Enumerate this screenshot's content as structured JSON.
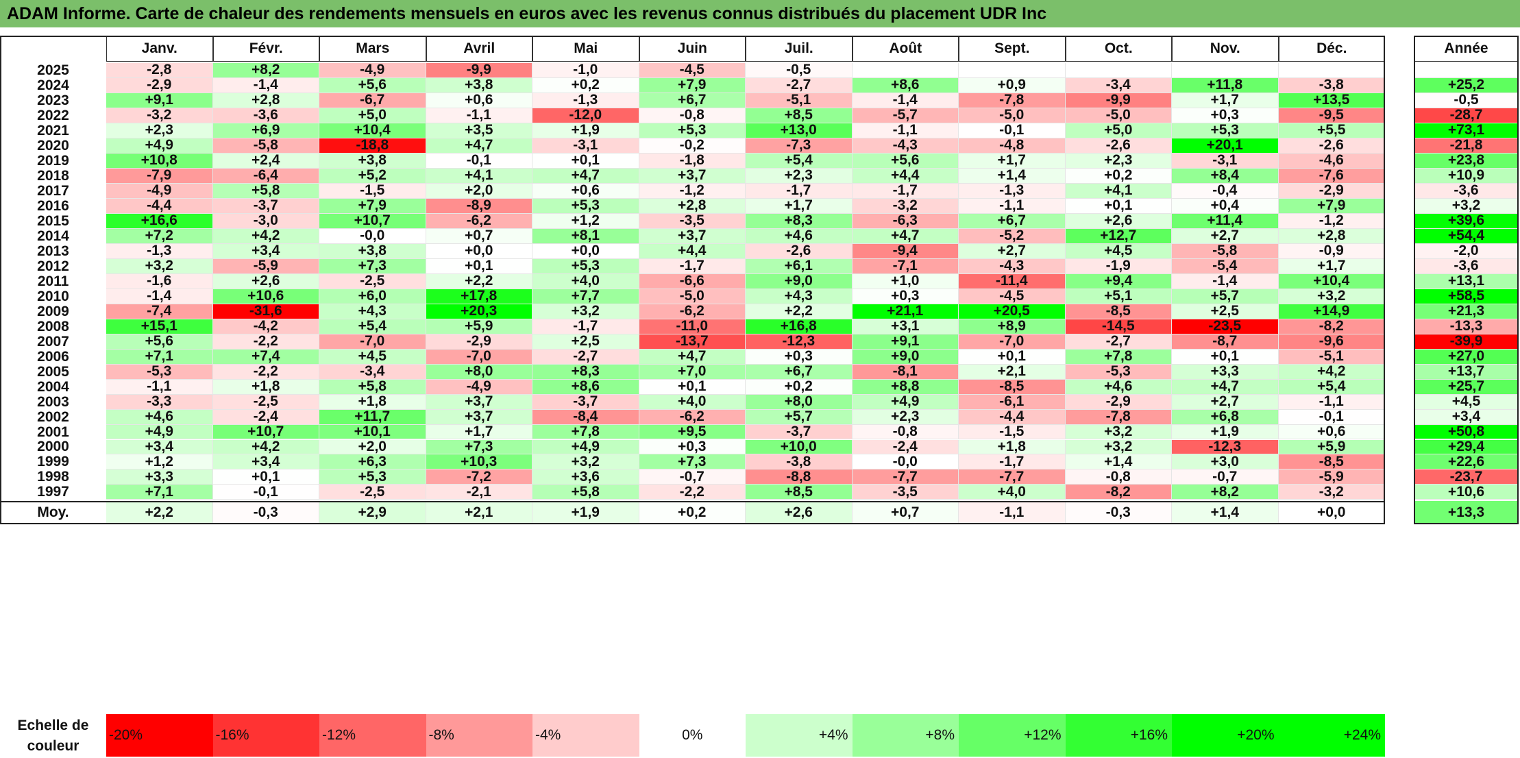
{
  "title": "ADAM Informe. Carte de chaleur des rendements mensuels en euros avec les revenus connus distribués du placement UDR Inc",
  "chart_data": {
    "type": "heatmap",
    "title": "ADAM Informe. Carte de chaleur des rendements mensuels en euros avec les revenus connus distribués du placement UDR Inc",
    "columns": [
      "Janv.",
      "Févr.",
      "Mars",
      "Avril",
      "Mai",
      "Juin",
      "Juil.",
      "Août",
      "Sept.",
      "Oct.",
      "Nov.",
      "Déc."
    ],
    "year_column_label": "Année",
    "rows": [
      {
        "year": "2025",
        "values": [
          "-2,8",
          "+8,2",
          "-4,9",
          "-9,9",
          "-1,0",
          "-4,5",
          "-0,5",
          "",
          "",
          "",
          "",
          ""
        ],
        "annual": ""
      },
      {
        "year": "2024",
        "values": [
          "-2,9",
          "-1,4",
          "+5,6",
          "+3,8",
          "+0,2",
          "+7,9",
          "-2,7",
          "+8,6",
          "+0,9",
          "-3,4",
          "+11,8",
          "-3,8"
        ],
        "annual": "+25,2"
      },
      {
        "year": "2023",
        "values": [
          "+9,1",
          "+2,8",
          "-6,7",
          "+0,6",
          "-1,3",
          "+6,7",
          "-5,1",
          "-1,4",
          "-7,8",
          "-9,9",
          "+1,7",
          "+13,5"
        ],
        "annual": "-0,5"
      },
      {
        "year": "2022",
        "values": [
          "-3,2",
          "-3,6",
          "+5,0",
          "-1,1",
          "-12,0",
          "-0,8",
          "+8,5",
          "-5,7",
          "-5,0",
          "-5,0",
          "+0,3",
          "-9,5"
        ],
        "annual": "-28,7"
      },
      {
        "year": "2021",
        "values": [
          "+2,3",
          "+6,9",
          "+10,4",
          "+3,5",
          "+1,9",
          "+5,3",
          "+13,0",
          "-1,1",
          "-0,1",
          "+5,0",
          "+5,3",
          "+5,5"
        ],
        "annual": "+73,1"
      },
      {
        "year": "2020",
        "values": [
          "+4,9",
          "-5,8",
          "-18,8",
          "+4,7",
          "-3,1",
          "-0,2",
          "-7,3",
          "-4,3",
          "-4,8",
          "-2,6",
          "+20,1",
          "-2,6"
        ],
        "annual": "-21,8"
      },
      {
        "year": "2019",
        "values": [
          "+10,8",
          "+2,4",
          "+3,8",
          "-0,1",
          "+0,1",
          "-1,8",
          "+5,4",
          "+5,6",
          "+1,7",
          "+2,3",
          "-3,1",
          "-4,6"
        ],
        "annual": "+23,8"
      },
      {
        "year": "2018",
        "values": [
          "-7,9",
          "-6,4",
          "+5,2",
          "+4,1",
          "+4,7",
          "+3,7",
          "+2,3",
          "+4,4",
          "+1,4",
          "+0,2",
          "+8,4",
          "-7,6"
        ],
        "annual": "+10,9"
      },
      {
        "year": "2017",
        "values": [
          "-4,9",
          "+5,8",
          "-1,5",
          "+2,0",
          "+0,6",
          "-1,2",
          "-1,7",
          "-1,7",
          "-1,3",
          "+4,1",
          "-0,4",
          "-2,9"
        ],
        "annual": "-3,6"
      },
      {
        "year": "2016",
        "values": [
          "-4,4",
          "-3,7",
          "+7,9",
          "-8,9",
          "+5,3",
          "+2,8",
          "+1,7",
          "-3,2",
          "-1,1",
          "+0,1",
          "+0,4",
          "+7,9"
        ],
        "annual": "+3,2"
      },
      {
        "year": "2015",
        "values": [
          "+16,6",
          "-3,0",
          "+10,7",
          "-6,2",
          "+1,2",
          "-3,5",
          "+8,3",
          "-6,3",
          "+6,7",
          "+2,6",
          "+11,4",
          "-1,2"
        ],
        "annual": "+39,6"
      },
      {
        "year": "2014",
        "values": [
          "+7,2",
          "+4,2",
          "-0,0",
          "+0,7",
          "+8,1",
          "+3,7",
          "+4,6",
          "+4,7",
          "-5,2",
          "+12,7",
          "+2,7",
          "+2,8"
        ],
        "annual": "+54,4"
      },
      {
        "year": "2013",
        "values": [
          "-1,3",
          "+3,4",
          "+3,8",
          "+0,0",
          "+0,0",
          "+4,4",
          "-2,6",
          "-9,4",
          "+2,7",
          "+4,5",
          "-5,8",
          "-0,9"
        ],
        "annual": "-2,0"
      },
      {
        "year": "2012",
        "values": [
          "+3,2",
          "-5,9",
          "+7,3",
          "+0,1",
          "+5,3",
          "-1,7",
          "+6,1",
          "-7,1",
          "-4,3",
          "-1,9",
          "-5,4",
          "+1,7"
        ],
        "annual": "-3,6"
      },
      {
        "year": "2011",
        "values": [
          "-1,6",
          "+2,6",
          "-2,5",
          "+2,2",
          "+4,0",
          "-6,6",
          "+9,0",
          "+1,0",
          "-11,4",
          "+9,4",
          "-1,4",
          "+10,4"
        ],
        "annual": "+13,1"
      },
      {
        "year": "2010",
        "values": [
          "-1,4",
          "+10,6",
          "+6,0",
          "+17,8",
          "+7,7",
          "-5,0",
          "+4,3",
          "+0,3",
          "-4,5",
          "+5,1",
          "+5,7",
          "+3,2"
        ],
        "annual": "+58,5"
      },
      {
        "year": "2009",
        "values": [
          "-7,4",
          "-31,6",
          "+4,3",
          "+20,3",
          "+3,2",
          "-6,2",
          "+2,2",
          "+21,1",
          "+20,5",
          "-8,5",
          "+2,5",
          "+14,9"
        ],
        "annual": "+21,3"
      },
      {
        "year": "2008",
        "values": [
          "+15,1",
          "-4,2",
          "+5,4",
          "+5,9",
          "-1,7",
          "-11,0",
          "+16,8",
          "+3,1",
          "+8,9",
          "-14,5",
          "-23,5",
          "-8,2"
        ],
        "annual": "-13,3"
      },
      {
        "year": "2007",
        "values": [
          "+5,6",
          "-2,2",
          "-7,0",
          "-2,9",
          "+2,5",
          "-13,7",
          "-12,3",
          "+9,1",
          "-7,0",
          "-2,7",
          "-8,7",
          "-9,6"
        ],
        "annual": "-39,9"
      },
      {
        "year": "2006",
        "values": [
          "+7,1",
          "+7,4",
          "+4,5",
          "-7,0",
          "-2,7",
          "+4,7",
          "+0,3",
          "+9,0",
          "+0,1",
          "+7,8",
          "+0,1",
          "-5,1"
        ],
        "annual": "+27,0"
      },
      {
        "year": "2005",
        "values": [
          "-5,3",
          "-2,2",
          "-3,4",
          "+8,0",
          "+8,3",
          "+7,0",
          "+6,7",
          "-8,1",
          "+2,1",
          "-5,3",
          "+3,3",
          "+4,2"
        ],
        "annual": "+13,7"
      },
      {
        "year": "2004",
        "values": [
          "-1,1",
          "+1,8",
          "+5,8",
          "-4,9",
          "+8,6",
          "+0,1",
          "+0,2",
          "+8,8",
          "-8,5",
          "+4,6",
          "+4,7",
          "+5,4"
        ],
        "annual": "+25,7"
      },
      {
        "year": "2003",
        "values": [
          "-3,3",
          "-2,5",
          "+1,8",
          "+3,7",
          "-3,7",
          "+4,0",
          "+8,0",
          "+4,9",
          "-6,1",
          "-2,9",
          "+2,7",
          "-1,1"
        ],
        "annual": "+4,5"
      },
      {
        "year": "2002",
        "values": [
          "+4,6",
          "-2,4",
          "+11,7",
          "+3,7",
          "-8,4",
          "-6,2",
          "+5,7",
          "+2,3",
          "-4,4",
          "-7,8",
          "+6,8",
          "-0,1"
        ],
        "annual": "+3,4"
      },
      {
        "year": "2001",
        "values": [
          "+4,9",
          "+10,7",
          "+10,1",
          "+1,7",
          "+7,8",
          "+9,5",
          "-3,7",
          "-0,8",
          "-1,5",
          "+3,2",
          "+1,9",
          "+0,6"
        ],
        "annual": "+50,8"
      },
      {
        "year": "2000",
        "values": [
          "+3,4",
          "+4,2",
          "+2,0",
          "+7,3",
          "+4,9",
          "+0,3",
          "+10,0",
          "-2,4",
          "+1,8",
          "+3,2",
          "-12,3",
          "+5,9"
        ],
        "annual": "+29,4"
      },
      {
        "year": "1999",
        "values": [
          "+1,2",
          "+3,4",
          "+6,3",
          "+10,3",
          "+3,2",
          "+7,3",
          "-3,8",
          "-0,0",
          "-1,7",
          "+1,4",
          "+3,0",
          "-8,5"
        ],
        "annual": "+22,6"
      },
      {
        "year": "1998",
        "values": [
          "+3,3",
          "+0,1",
          "+5,3",
          "-7,2",
          "+3,6",
          "-0,7",
          "-8,8",
          "-7,7",
          "-7,7",
          "-0,8",
          "-0,7",
          "-5,9"
        ],
        "annual": "-23,7"
      },
      {
        "year": "1997",
        "values": [
          "+7,1",
          "-0,1",
          "-2,5",
          "-2,1",
          "+5,8",
          "-2,2",
          "+8,5",
          "-3,5",
          "+4,0",
          "-8,2",
          "+8,2",
          "-3,2"
        ],
        "annual": "+10,6"
      }
    ],
    "average": {
      "label": "Moy.",
      "values": [
        "+2,2",
        "-0,3",
        "+2,9",
        "+2,1",
        "+1,9",
        "+0,2",
        "+2,6",
        "+0,7",
        "-1,1",
        "-0,3",
        "+1,4",
        "+0,0"
      ],
      "annual": "+13,3"
    },
    "color_scale": {
      "label_line1": "Echelle de",
      "label_line2": "couleur",
      "stops": [
        {
          "label": "-20%",
          "value": -20
        },
        {
          "label": "-16%",
          "value": -16
        },
        {
          "label": "-12%",
          "value": -12
        },
        {
          "label": "-8%",
          "value": -8
        },
        {
          "label": "-4%",
          "value": -4
        },
        {
          "label": "0%",
          "value": 0
        },
        {
          "label": "+4%",
          "value": 4
        },
        {
          "label": "+8%",
          "value": 8
        },
        {
          "label": "+12%",
          "value": 12
        },
        {
          "label": "+16%",
          "value": 16
        },
        {
          "label": "+20%",
          "value": 20
        },
        {
          "label": "+24%",
          "value": 24
        }
      ],
      "negative_color": "#ff0000",
      "neutral_color": "#ffffff",
      "positive_color": "#00ff00"
    }
  }
}
